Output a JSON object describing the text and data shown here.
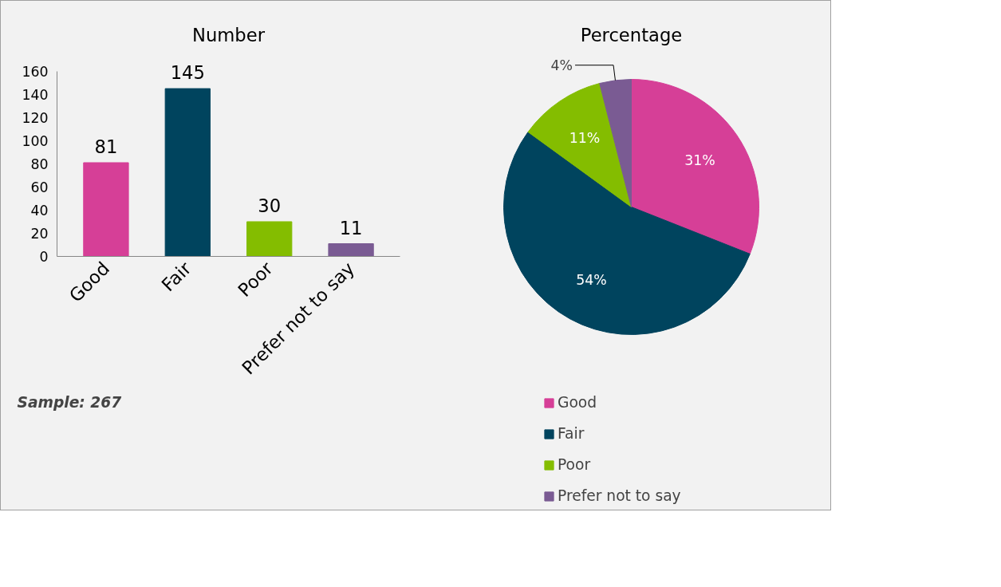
{
  "chart_data": [
    {
      "type": "bar",
      "title": "Number",
      "categories": [
        "Good",
        "Fair",
        "Poor",
        "Prefer not to say"
      ],
      "values": [
        81,
        145,
        30,
        11
      ],
      "colors": [
        "#d63f97",
        "#00445e",
        "#84bd00",
        "#7a5b93"
      ],
      "ylim": [
        0,
        160
      ],
      "yticks": [
        0,
        20,
        40,
        60,
        80,
        100,
        120,
        140,
        160
      ],
      "grid": false,
      "data_labels": true,
      "annotations": [
        "Sample: 267"
      ]
    },
    {
      "type": "pie",
      "title": "Percentage",
      "categories": [
        "Good",
        "Fair",
        "Poor",
        "Prefer not to say"
      ],
      "values": [
        31,
        54,
        11,
        4
      ],
      "colors": [
        "#d63f97",
        "#00445e",
        "#84bd00",
        "#7a5b93"
      ],
      "value_labels": [
        "31%",
        "54%",
        "11%",
        "4%"
      ],
      "legend": "bottom"
    }
  ]
}
